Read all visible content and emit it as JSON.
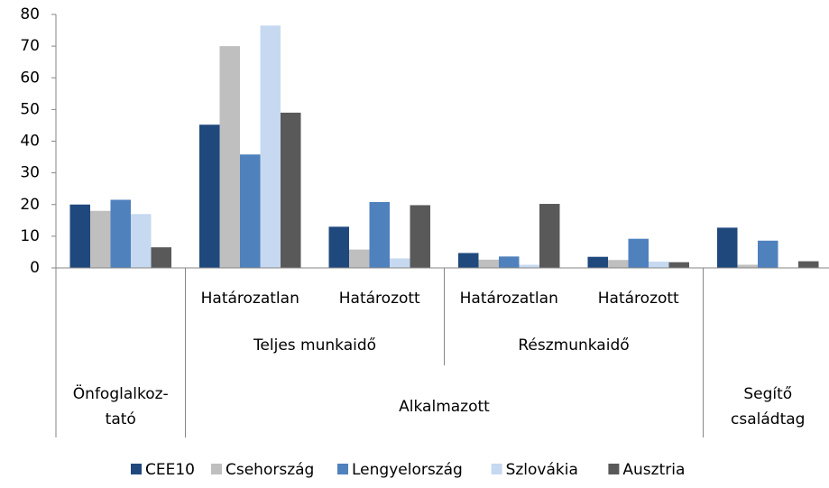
{
  "chart_data": {
    "type": "bar",
    "categories": [
      null,
      "Határozatlan",
      "Határozott",
      "Határozatlan",
      "Határozott",
      null
    ],
    "category_levels": [
      [
        null,
        "Teljes munkaidő",
        "Teljes munkaidő",
        "Részmunkaidő",
        "Részmunkaidő",
        null
      ],
      [
        "Önfoglalkoz-\ntató",
        "Alkalmazott",
        "Alkalmazott",
        "Alkalmazott",
        "Alkalmazott",
        "Segítő\ncsaládtag"
      ]
    ],
    "series": [
      {
        "name": "CEE10",
        "color": "#1f497d",
        "values": [
          20,
          45.2,
          13,
          4.7,
          3.5,
          12.7
        ]
      },
      {
        "name": "Csehország",
        "color": "#bfbfbf",
        "values": [
          18,
          70,
          5.8,
          2.6,
          2.5,
          1
        ]
      },
      {
        "name": "Lengyelország",
        "color": "#4f81bd",
        "values": [
          21.5,
          35.8,
          20.8,
          3.6,
          9.2,
          8.6
        ]
      },
      {
        "name": "Szlovákia",
        "color": "#c6d9f1",
        "values": [
          17,
          76.5,
          3,
          1,
          2,
          0
        ]
      },
      {
        "name": "Ausztria",
        "color": "#595959",
        "values": [
          6.5,
          49,
          19.8,
          20.2,
          1.8,
          2.1
        ]
      }
    ],
    "ylim": [
      0,
      80
    ],
    "yticks": [
      0,
      10,
      20,
      30,
      40,
      50,
      60,
      70,
      80
    ],
    "legend": "bottom"
  }
}
